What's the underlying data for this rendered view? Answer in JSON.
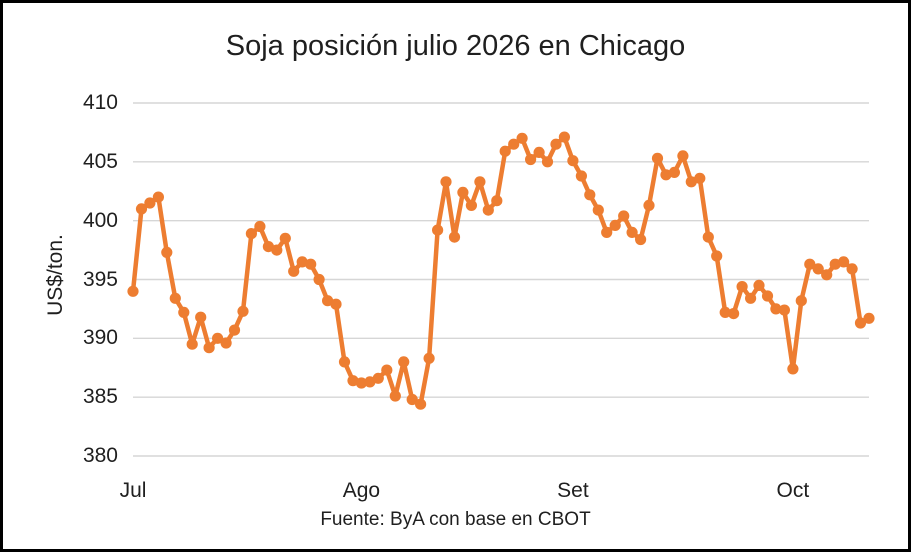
{
  "chart_data": {
    "type": "line",
    "title": "Soja posición julio 2026 en Chicago",
    "ylabel": "US$/ton.",
    "source_caption": "Fuente: ByA con base en CBOT",
    "ylim": [
      380,
      410
    ],
    "yticks": [
      380,
      385,
      390,
      395,
      400,
      405,
      410
    ],
    "x_tick_labels": [
      {
        "label": "Jul",
        "index": 0
      },
      {
        "label": "Ago",
        "index": 27
      },
      {
        "label": "Set",
        "index": 52
      },
      {
        "label": "Oct",
        "index": 78
      }
    ],
    "grid": true,
    "legend": "none",
    "marker": "circle",
    "line_color": "#ED7D31",
    "gridline_color": "#D6D6D6",
    "values": [
      394.0,
      401.0,
      401.5,
      402.0,
      397.3,
      393.4,
      392.2,
      389.5,
      391.8,
      389.2,
      390.0,
      389.6,
      390.7,
      392.3,
      398.9,
      399.5,
      397.8,
      397.5,
      398.5,
      395.7,
      396.5,
      396.3,
      395.0,
      393.2,
      392.9,
      388.0,
      386.4,
      386.2,
      386.3,
      386.6,
      387.3,
      385.1,
      388.0,
      384.8,
      384.4,
      388.3,
      399.2,
      403.3,
      398.6,
      402.4,
      401.3,
      403.3,
      400.9,
      401.7,
      405.9,
      406.5,
      407.0,
      405.2,
      405.8,
      405.0,
      406.5,
      407.1,
      405.1,
      403.8,
      402.2,
      400.9,
      399.0,
      399.6,
      400.4,
      399.0,
      398.4,
      401.3,
      405.3,
      403.9,
      404.1,
      405.5,
      403.3,
      403.6,
      398.6,
      397.0,
      392.2,
      392.1,
      394.4,
      393.4,
      394.5,
      393.6,
      392.5,
      392.4,
      387.4,
      393.2,
      396.3,
      395.9,
      395.4,
      396.3,
      396.5,
      395.9,
      391.3,
      391.7
    ]
  }
}
